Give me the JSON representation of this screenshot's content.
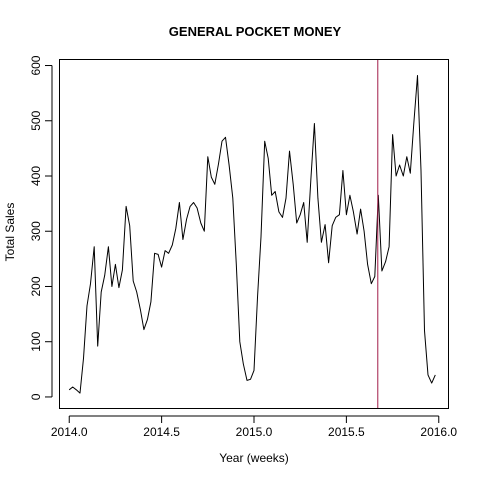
{
  "chart_data": {
    "type": "line",
    "title": "GENERAL POCKET MONEY",
    "xlabel": "Year (weeks)",
    "ylabel": "Total Sales",
    "xlim": [
      2013.95,
      2016.05
    ],
    "ylim": [
      -20,
      610
    ],
    "xticks": [
      2014.0,
      2014.5,
      2015.0,
      2015.5,
      2016.0
    ],
    "xtick_labels": [
      "2014.0",
      "2014.5",
      "2015.0",
      "2015.5",
      "2016.0"
    ],
    "yticks": [
      0,
      100,
      200,
      300,
      400,
      500,
      600
    ],
    "ytick_labels": [
      "0",
      "100",
      "200",
      "300",
      "400",
      "500",
      "600"
    ],
    "grid": false,
    "vline": {
      "x": 2015.67,
      "color": "#a01c4a"
    },
    "series": [
      {
        "color": "#000000",
        "x": [
          2014.0,
          2014.019,
          2014.038,
          2014.058,
          2014.077,
          2014.096,
          2014.115,
          2014.135,
          2014.154,
          2014.173,
          2014.192,
          2014.212,
          2014.231,
          2014.25,
          2014.269,
          2014.288,
          2014.308,
          2014.327,
          2014.346,
          2014.365,
          2014.385,
          2014.404,
          2014.423,
          2014.442,
          2014.462,
          2014.481,
          2014.5,
          2014.519,
          2014.538,
          2014.558,
          2014.577,
          2014.596,
          2014.615,
          2014.635,
          2014.654,
          2014.673,
          2014.692,
          2014.712,
          2014.731,
          2014.75,
          2014.769,
          2014.788,
          2014.808,
          2014.827,
          2014.846,
          2014.865,
          2014.885,
          2014.904,
          2014.923,
          2014.942,
          2014.962,
          2014.981,
          2015.0,
          2015.019,
          2015.038,
          2015.058,
          2015.077,
          2015.096,
          2015.115,
          2015.135,
          2015.154,
          2015.173,
          2015.192,
          2015.212,
          2015.231,
          2015.25,
          2015.269,
          2015.288,
          2015.308,
          2015.327,
          2015.346,
          2015.365,
          2015.385,
          2015.404,
          2015.423,
          2015.442,
          2015.462,
          2015.481,
          2015.5,
          2015.519,
          2015.538,
          2015.558,
          2015.577,
          2015.596,
          2015.615,
          2015.635,
          2015.654,
          2015.673,
          2015.692,
          2015.712,
          2015.731,
          2015.75,
          2015.769,
          2015.788,
          2015.808,
          2015.827,
          2015.846,
          2015.865,
          2015.885,
          2015.904,
          2015.923,
          2015.942,
          2015.962,
          2015.981
        ],
        "values": [
          13,
          18,
          13,
          7,
          70,
          165,
          205,
          272,
          92,
          190,
          220,
          272,
          200,
          240,
          198,
          230,
          345,
          310,
          210,
          190,
          158,
          122,
          140,
          172,
          260,
          258,
          235,
          265,
          260,
          275,
          305,
          352,
          285,
          322,
          345,
          352,
          342,
          315,
          300,
          435,
          398,
          385,
          422,
          463,
          470,
          420,
          360,
          240,
          100,
          60,
          30,
          32,
          48,
          180,
          290,
          463,
          432,
          365,
          372,
          335,
          325,
          360,
          445,
          385,
          315,
          330,
          352,
          280,
          395,
          495,
          360,
          280,
          312,
          243,
          310,
          325,
          330,
          410,
          330,
          365,
          335,
          295,
          340,
          300,
          240,
          205,
          218,
          365,
          228,
          245,
          272,
          475,
          400,
          420,
          400,
          435,
          405,
          495,
          582,
          410,
          120,
          40,
          25,
          40
        ]
      }
    ]
  }
}
